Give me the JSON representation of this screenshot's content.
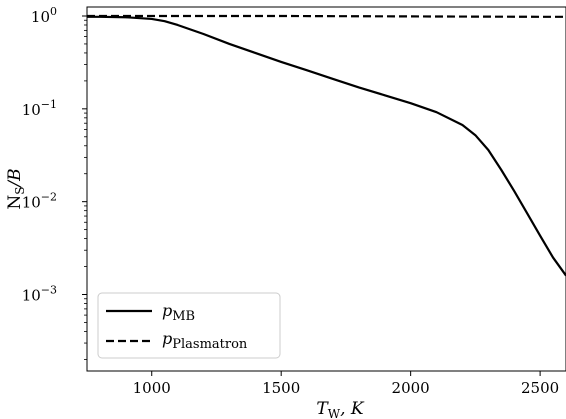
{
  "chart_data": {
    "type": "line",
    "title": "",
    "xlabel": "T_W, K",
    "ylabel": "N_S/B",
    "xlim": [
      750,
      2600
    ],
    "ylim": [
      0.00015,
      1.25
    ],
    "yscale": "log",
    "grid": false,
    "legend_position": "lower-left",
    "x_ticks": [
      1000,
      1500,
      2000,
      2500
    ],
    "x_tick_labels": [
      "1000",
      "1500",
      "2000",
      "2500"
    ],
    "y_ticks": [
      0.001,
      0.01,
      0.1,
      1
    ],
    "y_tick_labels": [
      {
        "base": "10",
        "exp": "−3"
      },
      {
        "base": "10",
        "exp": "−2"
      },
      {
        "base": "10",
        "exp": "−1"
      },
      {
        "base": "10",
        "exp": "0"
      }
    ],
    "series": [
      {
        "name": "p_MB",
        "style": "solid",
        "x": [
          750,
          800,
          900,
          1000,
          1050,
          1100,
          1200,
          1300,
          1400,
          1500,
          1600,
          1700,
          1800,
          1900,
          2000,
          2100,
          2200,
          2250,
          2300,
          2350,
          2400,
          2450,
          2500,
          2550,
          2600
        ],
        "y": [
          0.98,
          0.98,
          0.97,
          0.93,
          0.88,
          0.8,
          0.64,
          0.5,
          0.4,
          0.32,
          0.26,
          0.21,
          0.17,
          0.14,
          0.115,
          0.092,
          0.067,
          0.052,
          0.036,
          0.022,
          0.013,
          0.0075,
          0.0043,
          0.0025,
          0.0016
        ]
      },
      {
        "name": "p_Plasmatron",
        "style": "dashed",
        "x": [
          750,
          1000,
          1500,
          2000,
          2500,
          2600
        ],
        "y": [
          1.0,
          1.0,
          1.0,
          0.99,
          0.98,
          0.98
        ]
      }
    ]
  },
  "legend": {
    "items": [
      {
        "main": "p",
        "sub": "MB"
      },
      {
        "main": "p",
        "sub": "Plasmatron"
      }
    ]
  },
  "axes": {
    "xlabel": {
      "main": "T",
      "sub": "W",
      "rest": ", K"
    },
    "ylabel": {
      "pre": "N",
      "sub": "S",
      "rest": "/B"
    }
  }
}
